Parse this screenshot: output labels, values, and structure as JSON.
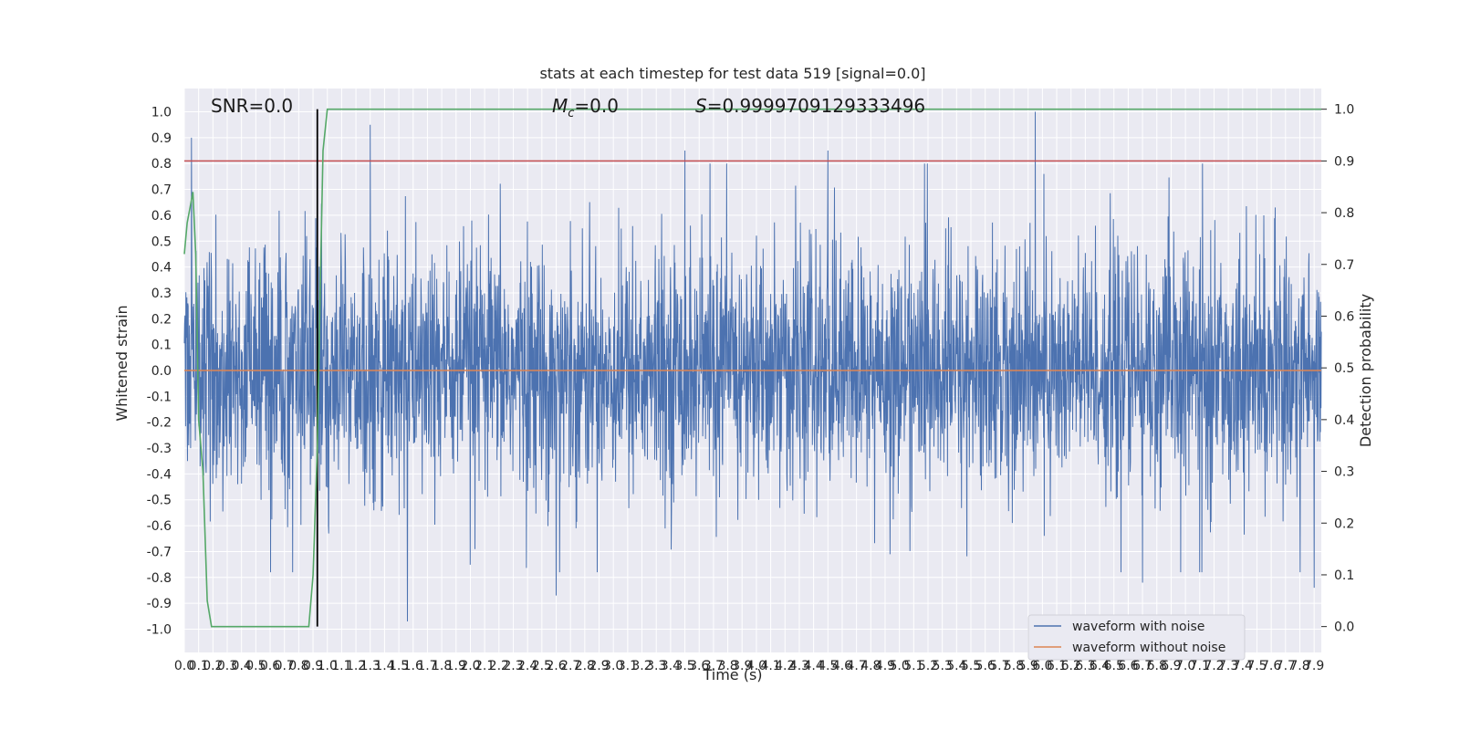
{
  "chart_data": {
    "type": "line",
    "title": "stats at each timestep for test data 519 [signal=0.0]",
    "xlabel": "Time (s)",
    "ylabel": "Whitened strain",
    "y2label": "Detection probability",
    "xlim": [
      0.0,
      7.95
    ],
    "ylim": [
      -1.09,
      1.09
    ],
    "y2lim": [
      -0.05,
      1.04
    ],
    "x_ticks": [
      "0.0",
      "0.1",
      "0.2",
      "0.3",
      "0.4",
      "0.5",
      "0.6",
      "0.7",
      "0.8",
      "0.9",
      "1.0",
      "1.1",
      "1.2",
      "1.3",
      "1.4",
      "1.5",
      "1.6",
      "1.7",
      "1.8",
      "1.9",
      "2.0",
      "2.1",
      "2.2",
      "2.3",
      "2.4",
      "2.5",
      "2.6",
      "2.7",
      "2.8",
      "2.9",
      "3.0",
      "3.1",
      "3.2",
      "3.3",
      "3.4",
      "3.5",
      "3.6",
      "3.7",
      "3.8",
      "3.9",
      "4.0",
      "4.1",
      "4.2",
      "4.3",
      "4.4",
      "4.5",
      "4.6",
      "4.7",
      "4.8",
      "4.9",
      "5.0",
      "5.1",
      "5.2",
      "5.3",
      "5.4",
      "5.5",
      "5.6",
      "5.7",
      "5.8",
      "5.9",
      "6.0",
      "6.1",
      "6.2",
      "6.3",
      "6.4",
      "6.5",
      "6.6",
      "6.7",
      "6.8",
      "6.9",
      "7.0",
      "7.1",
      "7.2",
      "7.3",
      "7.4",
      "7.5",
      "7.6",
      "7.7",
      "7.8",
      "7.9"
    ],
    "y_ticks": [
      "-1.0",
      "-0.9",
      "-0.8",
      "-0.7",
      "-0.6",
      "-0.5",
      "-0.4",
      "-0.3",
      "-0.2",
      "-0.1",
      "0.0",
      "0.1",
      "0.2",
      "0.3",
      "0.4",
      "0.5",
      "0.6",
      "0.7",
      "0.8",
      "0.9",
      "1.0"
    ],
    "y2_ticks": [
      "0.0",
      "0.1",
      "0.2",
      "0.3",
      "0.4",
      "0.5",
      "0.6",
      "0.7",
      "0.8",
      "0.9",
      "1.0"
    ],
    "annotations": {
      "snr": "SNR=0.0",
      "mc_symbol": "M",
      "mc_sub": "c",
      "mc_value": "=0.0",
      "s_symbol": "S",
      "s_value": "=0.9999709129333496"
    },
    "series": [
      {
        "name": "waveform with noise",
        "color": "#4c72b0",
        "axis": "left",
        "description_values": "whitened noise, mostly within -0.8..0.8, peaks near 1.0 at t=5.95 and -0.97 at t=1.56",
        "peaks": [
          [
            0.05,
            0.9
          ],
          [
            1.3,
            0.95
          ],
          [
            3.5,
            0.85
          ],
          [
            4.5,
            0.85
          ],
          [
            5.95,
            1.0
          ],
          [
            1.56,
            -0.97
          ],
          [
            2.6,
            -0.87
          ],
          [
            6.7,
            -0.82
          ],
          [
            7.9,
            -0.84
          ]
        ]
      },
      {
        "name": "waveform without noise",
        "color": "#dd8452",
        "axis": "left",
        "values": "constant 0.0"
      },
      {
        "name": "detection probability",
        "color": "#55a868",
        "axis": "right",
        "points": [
          [
            0.0,
            0.72
          ],
          [
            0.02,
            0.78
          ],
          [
            0.04,
            0.81
          ],
          [
            0.06,
            0.84
          ],
          [
            0.08,
            0.72
          ],
          [
            0.1,
            0.4
          ],
          [
            0.13,
            0.3
          ],
          [
            0.16,
            0.05
          ],
          [
            0.19,
            0.0
          ],
          [
            0.3,
            0.0
          ],
          [
            0.5,
            0.0
          ],
          [
            0.7,
            0.0
          ],
          [
            0.87,
            0.0
          ],
          [
            0.9,
            0.1
          ],
          [
            0.93,
            0.35
          ],
          [
            0.95,
            0.65
          ],
          [
            0.97,
            0.92
          ],
          [
            1.0,
            1.0
          ],
          [
            7.95,
            1.0
          ]
        ]
      }
    ],
    "reference_lines": [
      {
        "orientation": "horizontal",
        "axis": "right",
        "value": 0.9,
        "color": "#c44e52"
      },
      {
        "orientation": "vertical",
        "value": 0.93,
        "color": "#000000",
        "y2_range": [
          0.0,
          1.0
        ]
      }
    ],
    "legend": {
      "placement": "lower-right",
      "entries": [
        "waveform with noise",
        "waveform without noise"
      ]
    },
    "grid": true,
    "background": "#eaeaf2"
  }
}
